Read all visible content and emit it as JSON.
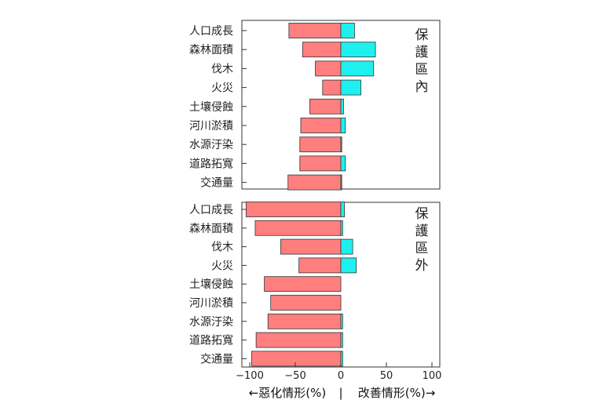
{
  "chart_data": [
    {
      "type": "bar",
      "orientation": "horizontal",
      "side_label": "保護區內",
      "categories": [
        "人口成長",
        "森林面積",
        "伐木",
        "火災",
        "土壤侵蝕",
        "河川淤積",
        "水源汙染",
        "道路拓寬",
        "交通量"
      ],
      "series": [
        {
          "name": "",
          "color": "#ff7f7f",
          "values": [
            -57,
            -42,
            -28,
            -20,
            -34,
            -44,
            -45,
            -45,
            -58
          ]
        },
        {
          "name": "",
          "color": "#1ef0f0",
          "values": [
            15,
            38,
            36,
            22,
            3,
            5,
            1,
            5,
            1
          ]
        }
      ],
      "xlim": [
        -100,
        100
      ]
    },
    {
      "type": "bar",
      "orientation": "horizontal",
      "side_label": "保護區外",
      "categories": [
        "人口成長",
        "森林面積",
        "伐木",
        "火災",
        "土壤侵蝕",
        "河川淤積",
        "水源汙染",
        "道路拓寬",
        "交通量"
      ],
      "series": [
        {
          "name": "",
          "color": "#ff7f7f",
          "values": [
            -104,
            -94,
            -66,
            -46,
            -84,
            -77,
            -80,
            -93,
            -98
          ]
        },
        {
          "name": "",
          "color": "#1ef0f0",
          "values": [
            4,
            2,
            13,
            17,
            0,
            0,
            2,
            2,
            2
          ]
        }
      ],
      "xlim": [
        -110,
        100
      ],
      "xticks": [
        -100,
        -50,
        0,
        50,
        100
      ],
      "xtick_labels": [
        "−100",
        "−50",
        "0",
        "50",
        "100"
      ]
    }
  ],
  "caption": {
    "left": "←惡化情形(%)",
    "divider": "|",
    "right": "改善情形(%)→"
  },
  "colors": {
    "worse": "#ff7f7f",
    "better": "#1ef0f0",
    "edge": "#333333"
  }
}
